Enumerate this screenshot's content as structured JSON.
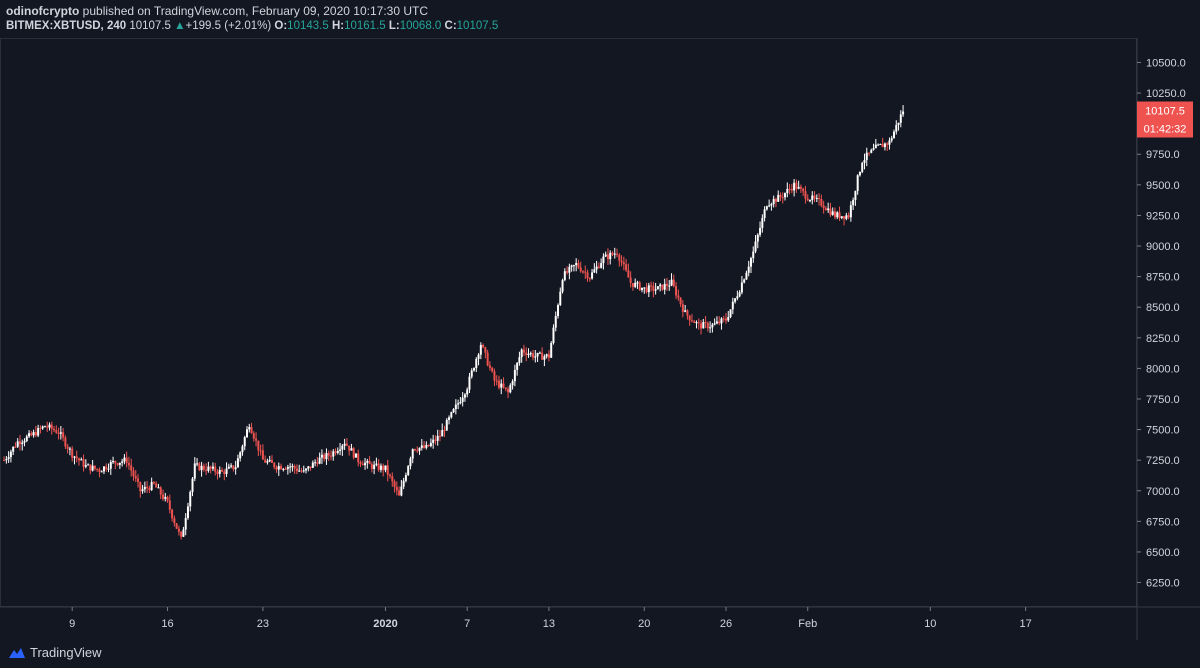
{
  "header": {
    "author": "odinofcrypto",
    "published_text": "published on TradingView.com, February 09, 2020 10:17:30 UTC",
    "symbol": "BITMEX:XBTUSD, 240",
    "last": "10107.5",
    "change_arrow": "▲",
    "change": "+199.5 (+2.01%)",
    "o_label": "O:",
    "o_value": "10143.5",
    "h_label": "H:",
    "h_value": "10161.5",
    "l_label": "L:",
    "l_value": "10068.0",
    "c_label": "C:",
    "c_value": "10107.5"
  },
  "footer": {
    "brand": "TradingView"
  },
  "colors": {
    "background": "#131722",
    "up": "#ffffff",
    "down": "#ef5350",
    "text": "#d1d4dc",
    "accent_up": "#26a69a",
    "price_tag": "#ef5350"
  },
  "chart_data": {
    "type": "candlestick",
    "symbol": "BITMEX:XBTUSD",
    "timeframe": "240",
    "ylim": [
      6050,
      10700
    ],
    "y_ticks": [
      6250,
      6500,
      6750,
      7000,
      7250,
      7500,
      7750,
      8000,
      8250,
      8500,
      8750,
      9000,
      9250,
      9500,
      9750,
      10000,
      10250,
      10500
    ],
    "y_tick_labels": [
      "6250.0",
      "6500.0",
      "6750.0",
      "7000.0",
      "7250.0",
      "7500.0",
      "7750.0",
      "8000.0",
      "8250.0",
      "8500.0",
      "8750.0",
      "9000.0",
      "9250.0",
      "9500.0",
      "9750.0",
      "10000.0",
      "10250.0",
      "10500.0"
    ],
    "x_ticks": [
      {
        "label": "9",
        "day": 9,
        "bold": false
      },
      {
        "label": "16",
        "day": 16,
        "bold": false
      },
      {
        "label": "23",
        "day": 23,
        "bold": false
      },
      {
        "label": "2020",
        "day": 32,
        "bold": true
      },
      {
        "label": "7",
        "day": 38,
        "bold": false
      },
      {
        "label": "13",
        "day": 44,
        "bold": false
      },
      {
        "label": "20",
        "day": 51,
        "bold": false
      },
      {
        "label": "26",
        "day": 57,
        "bold": false
      },
      {
        "label": "Feb",
        "day": 63,
        "bold": false
      },
      {
        "label": "10",
        "day": 72,
        "bold": false
      },
      {
        "label": "17",
        "day": 79,
        "bold": false
      }
    ],
    "x_range_days": [
      3.7,
      87.1
    ],
    "last_price": 10107.5,
    "countdown": "01:42:32",
    "closes_daily": [
      [
        4,
        7250
      ],
      [
        5,
        7400
      ],
      [
        6,
        7450
      ],
      [
        7,
        7530
      ],
      [
        8,
        7480
      ],
      [
        9,
        7300
      ],
      [
        10,
        7200
      ],
      [
        11,
        7170
      ],
      [
        12,
        7230
      ],
      [
        13,
        7250
      ],
      [
        14,
        7000
      ],
      [
        15,
        7050
      ],
      [
        16,
        6900
      ],
      [
        17,
        6600
      ],
      [
        18,
        7200
      ],
      [
        19,
        7180
      ],
      [
        20,
        7150
      ],
      [
        21,
        7200
      ],
      [
        22,
        7550
      ],
      [
        23,
        7250
      ],
      [
        24,
        7200
      ],
      [
        25,
        7200
      ],
      [
        26,
        7150
      ],
      [
        27,
        7250
      ],
      [
        28,
        7300
      ],
      [
        29,
        7400
      ],
      [
        30,
        7250
      ],
      [
        31,
        7200
      ],
      [
        32,
        7180
      ],
      [
        33,
        6950
      ],
      [
        34,
        7350
      ],
      [
        35,
        7350
      ],
      [
        36,
        7450
      ],
      [
        37,
        7650
      ],
      [
        38,
        7850
      ],
      [
        39,
        8200
      ],
      [
        40,
        7900
      ],
      [
        41,
        7800
      ],
      [
        42,
        8150
      ],
      [
        43,
        8100
      ],
      [
        44,
        8100
      ],
      [
        45,
        8750
      ],
      [
        46,
        8850
      ],
      [
        47,
        8750
      ],
      [
        48,
        8900
      ],
      [
        49,
        8950
      ],
      [
        50,
        8700
      ],
      [
        51,
        8650
      ],
      [
        52,
        8650
      ],
      [
        53,
        8700
      ],
      [
        54,
        8450
      ],
      [
        55,
        8350
      ],
      [
        56,
        8350
      ],
      [
        57,
        8400
      ],
      [
        58,
        8650
      ],
      [
        59,
        8950
      ],
      [
        60,
        9350
      ],
      [
        61,
        9400
      ],
      [
        62,
        9500
      ],
      [
        63,
        9400
      ],
      [
        64,
        9350
      ],
      [
        65,
        9250
      ],
      [
        66,
        9250
      ],
      [
        67,
        9700
      ],
      [
        68,
        9800
      ],
      [
        69,
        9850
      ],
      [
        70,
        10107.5
      ]
    ]
  }
}
